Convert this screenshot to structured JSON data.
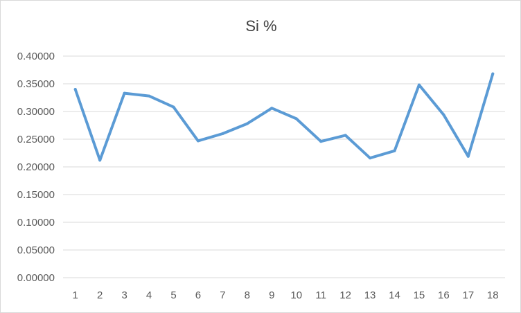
{
  "chart_data": {
    "type": "line",
    "title": "Si %",
    "xlabel": "",
    "ylabel": "",
    "categories": [
      "1",
      "2",
      "3",
      "4",
      "5",
      "6",
      "7",
      "8",
      "9",
      "10",
      "11",
      "12",
      "13",
      "14",
      "15",
      "16",
      "17",
      "18"
    ],
    "series": [
      {
        "values": [
          0.34,
          0.212,
          0.333,
          0.328,
          0.308,
          0.247,
          0.26,
          0.278,
          0.306,
          0.287,
          0.246,
          0.257,
          0.216,
          0.229,
          0.348,
          0.294,
          0.219,
          0.368
        ],
        "color": "#5b9bd5"
      }
    ],
    "ylim": [
      0,
      0.4
    ],
    "yticks": [
      "0.00000",
      "0.05000",
      "0.10000",
      "0.15000",
      "0.20000",
      "0.25000",
      "0.30000",
      "0.35000",
      "0.40000"
    ],
    "grid": true,
    "legend": "none"
  }
}
